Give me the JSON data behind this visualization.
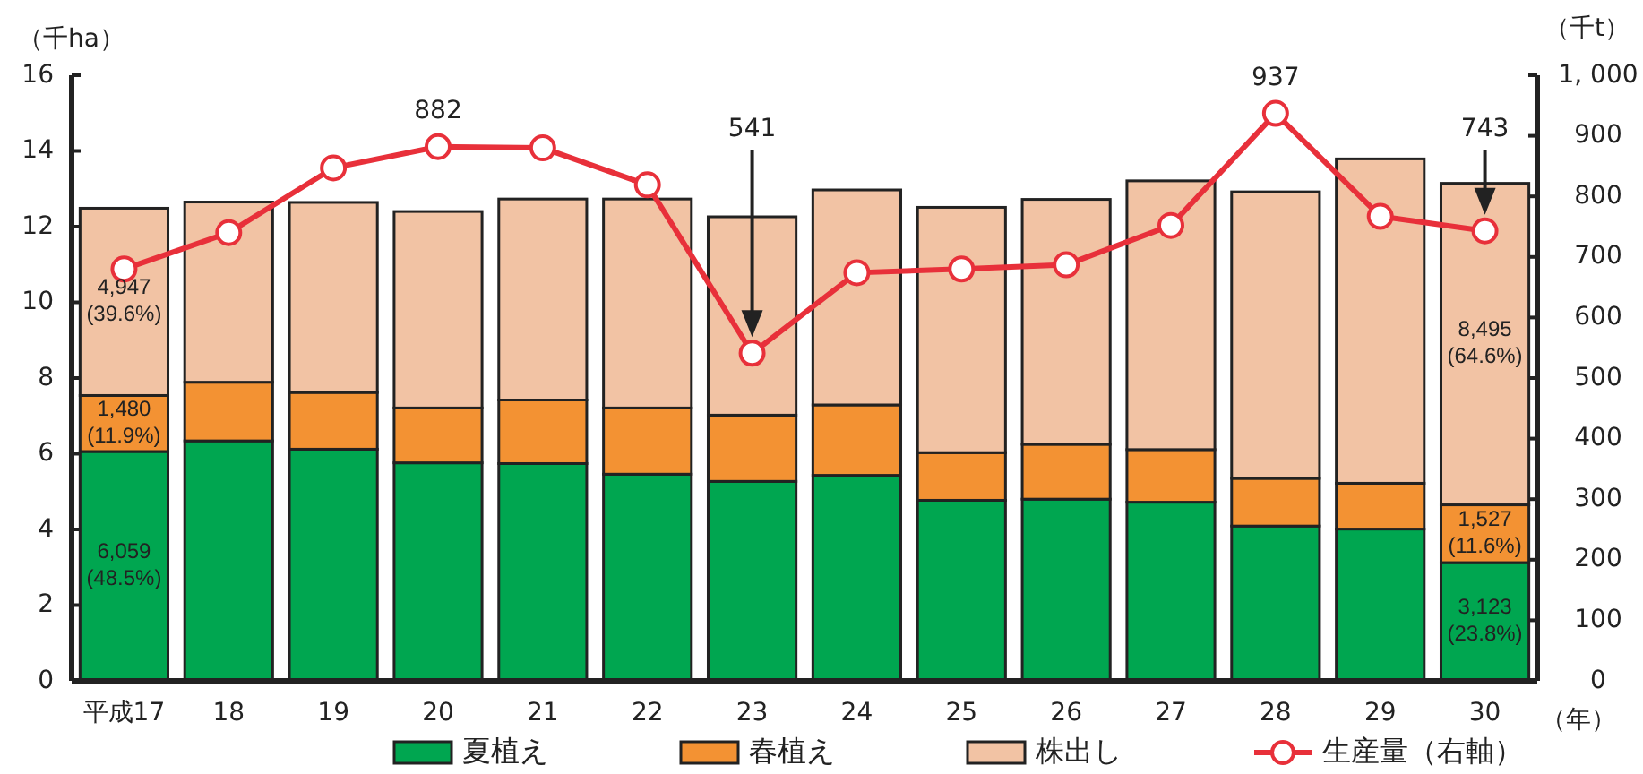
{
  "chart_data": {
    "type": "bar",
    "stacked": true,
    "xlabel": "（年）",
    "ylabel": "（千ha）",
    "y2label": "（千t）",
    "categories": [
      "平成17",
      "18",
      "19",
      "20",
      "21",
      "22",
      "23",
      "24",
      "25",
      "26",
      "27",
      "28",
      "29",
      "30"
    ],
    "ylim": [
      0,
      16
    ],
    "yticks": [
      0,
      2,
      4,
      6,
      8,
      10,
      12,
      14,
      16
    ],
    "y2lim": [
      0,
      1000
    ],
    "y2ticks": [
      0,
      100,
      200,
      300,
      400,
      500,
      600,
      700,
      800,
      900,
      {
        "value": 1000,
        "label": "1, 000"
      }
    ],
    "annotations": [
      "6,059 (48.5%)",
      "1,480 (11.9%)",
      "4,947 (39.6%)",
      "3,123 (23.8%)",
      "1,527 (11.6%)",
      "8,495 (64.6%)"
    ],
    "legend": "bottom",
    "marker": "circle",
    "line_style": "solid",
    "series": [
      {
        "name": "夏植え",
        "color": "#00a650",
        "values": [
          6.059,
          6.34,
          6.12,
          5.76,
          5.74,
          5.46,
          5.27,
          5.43,
          4.77,
          4.8,
          4.72,
          4.09,
          4.01,
          3.123
        ]
      },
      {
        "name": "春植え",
        "color": "#f39233",
        "values": [
          1.48,
          1.55,
          1.5,
          1.45,
          1.68,
          1.75,
          1.75,
          1.86,
          1.26,
          1.45,
          1.39,
          1.26,
          1.21,
          1.527
        ]
      },
      {
        "name": "株出し",
        "color": "#f2c3a4",
        "values": [
          4.947,
          4.76,
          5.02,
          5.19,
          5.31,
          5.52,
          5.24,
          5.68,
          6.48,
          6.47,
          7.1,
          7.57,
          8.57,
          8.495
        ]
      },
      {
        "name": "生産量（右軸）",
        "type": "line",
        "axis": "y2",
        "color": "#e8303a",
        "values": [
          680,
          740,
          847,
          882,
          880,
          819,
          541,
          674,
          680,
          687,
          752,
          937,
          767,
          743
        ],
        "value_labels": [
          null,
          null,
          null,
          "882",
          null,
          null,
          "541",
          null,
          null,
          null,
          null,
          "937",
          null,
          "743"
        ]
      }
    ]
  }
}
